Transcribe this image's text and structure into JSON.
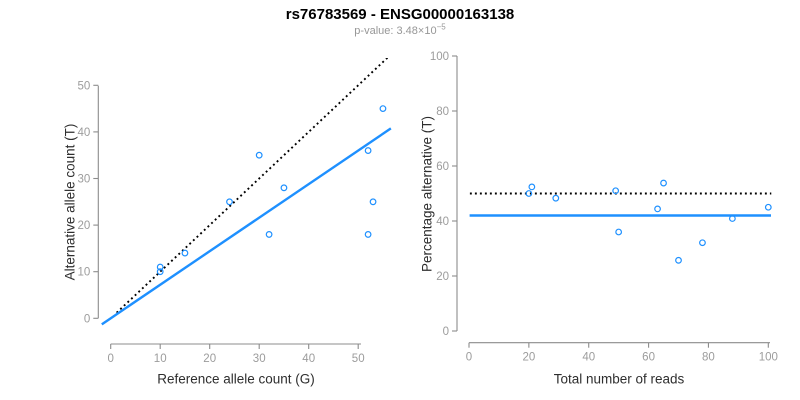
{
  "header": {
    "title": "rs76783569 - ENSG00000163138",
    "pvalue_prefix": "p-value: 3.48×10",
    "pvalue_exponent": "−5"
  },
  "colors": {
    "point": "#1E90FF",
    "fit_line": "#1E90FF",
    "identity_line": "#000000",
    "axis": "#8C8C8C",
    "tick_label": "#9C9C9C",
    "axis_title": "#2e2e2e",
    "title": "#000000",
    "subtitle": "#979797"
  },
  "chart_data": [
    {
      "type": "scatter",
      "xlabel": "Reference allele count (G)",
      "ylabel": "Alternative allele count (T)",
      "xlim": [
        0,
        55
      ],
      "ylim": [
        0,
        50
      ],
      "xticks": [
        0,
        10,
        20,
        30,
        40,
        50
      ],
      "yticks": [
        0,
        10,
        20,
        30,
        40,
        50
      ],
      "grid": false,
      "points": [
        [
          10,
          11
        ],
        [
          10,
          10
        ],
        [
          15,
          14
        ],
        [
          24,
          25
        ],
        [
          30,
          35
        ],
        [
          32,
          18
        ],
        [
          35,
          28
        ],
        [
          52,
          18
        ],
        [
          52,
          36
        ],
        [
          53,
          25
        ],
        [
          55,
          45
        ]
      ],
      "lines": [
        {
          "name": "identity-line",
          "type": "abline",
          "slope": 1,
          "intercept": 0,
          "style": "dotted",
          "color": "#000000"
        },
        {
          "name": "fit-line",
          "type": "abline",
          "slope": 0.72,
          "intercept": 0,
          "style": "solid",
          "color": "#1E90FF"
        }
      ]
    },
    {
      "type": "scatter",
      "xlabel": "Total number of reads",
      "ylabel": "Percentage alternative (T)",
      "xlim": [
        0,
        101
      ],
      "ylim": [
        0,
        100
      ],
      "xticks": [
        0,
        20,
        40,
        60,
        80,
        100
      ],
      "yticks": [
        0,
        20,
        40,
        60,
        80,
        100
      ],
      "grid": false,
      "points": [
        [
          21,
          52.4
        ],
        [
          20,
          50.0
        ],
        [
          29,
          48.3
        ],
        [
          49,
          51.0
        ],
        [
          65,
          53.8
        ],
        [
          50,
          36.0
        ],
        [
          63,
          44.4
        ],
        [
          70,
          25.7
        ],
        [
          88,
          40.9
        ],
        [
          78,
          32.1
        ],
        [
          100,
          45.0
        ]
      ],
      "lines": [
        {
          "name": "expected-50pct-line",
          "type": "hline",
          "y": 50,
          "style": "dotted",
          "color": "#000000"
        },
        {
          "name": "mean-percentage-line",
          "type": "hline",
          "y": 42,
          "style": "solid",
          "color": "#1E90FF"
        }
      ]
    }
  ]
}
